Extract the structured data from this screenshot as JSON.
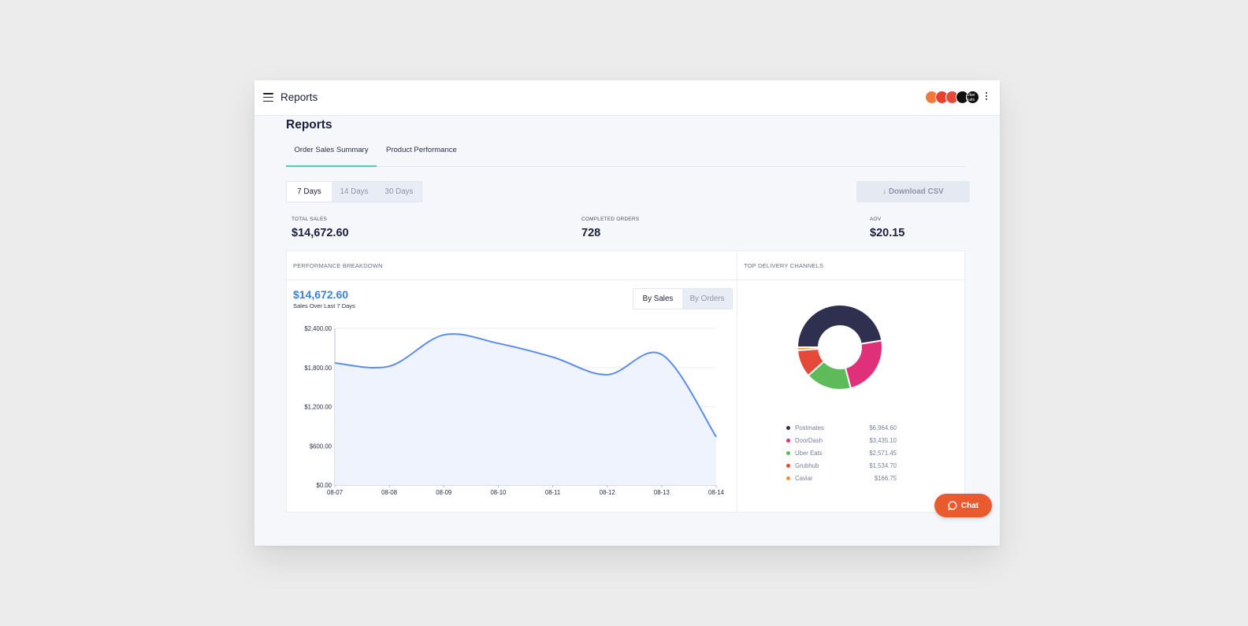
{
  "app": {
    "title": "Reports"
  },
  "header": {
    "logos": [
      {
        "name": "caviar-logo",
        "color": "#f07a3a"
      },
      {
        "name": "doordash-logo",
        "color": "#e8402a"
      },
      {
        "name": "grubhub-logo",
        "color": "#e54a3a"
      },
      {
        "name": "postmates-logo",
        "color": "#111111"
      },
      {
        "name": "uber-eats-logo",
        "color": "#0f0f0f",
        "text": "Uber Eats"
      }
    ]
  },
  "page": {
    "title": "Reports",
    "tabs": [
      {
        "label": "Order Sales Summary",
        "active": true
      },
      {
        "label": "Product Performance",
        "active": false
      }
    ]
  },
  "range": {
    "options": [
      "7 Days",
      "14 Days",
      "30 Days"
    ],
    "selected": "7 Days"
  },
  "download_label": "↓ Download CSV",
  "kpis": {
    "total_sales": {
      "label": "TOTAL SALES",
      "value": "$14,672.60"
    },
    "completed_orders": {
      "label": "COMPLETED ORDERS",
      "value": "728"
    },
    "aov": {
      "label": "AOV",
      "value": "$20.15"
    }
  },
  "performance": {
    "title": "PERFORMANCE BREAKDOWN",
    "total": "$14,672.60",
    "subtitle": "Sales Over Last 7 Days",
    "toggle": [
      "By Sales",
      "By Orders"
    ],
    "toggle_selected": "By Sales"
  },
  "channels": {
    "title": "TOP DELIVERY CHANNELS"
  },
  "chat_label": "Chat",
  "colors": {
    "line": "#5b8def",
    "area": "#eef3fd",
    "postmates": "#2f3050",
    "doordash": "#e0307a",
    "uber_eats": "#5dbb5a",
    "grubhub": "#e4493a",
    "caviar": "#f0913a"
  },
  "chart_data": [
    {
      "type": "area",
      "x": [
        "08-07",
        "08-08",
        "08-09",
        "08-10",
        "08-11",
        "08-12",
        "08-13",
        "08-14"
      ],
      "series": [
        {
          "values": [
            1870,
            1820,
            2300,
            2170,
            1960,
            1690,
            2000,
            740
          ]
        }
      ],
      "ylim": [
        0,
        2400
      ],
      "yticks": [
        0,
        600,
        1200,
        1800,
        2400
      ],
      "ytick_labels": [
        "$0.00",
        "$600.00",
        "$1,200.00",
        "$1,800.00",
        "$2,400.00"
      ],
      "grid": true
    },
    {
      "type": "pie",
      "donut": true,
      "labels": [
        "Postmates",
        "DoorDash",
        "Uber Eats",
        "Grubhub",
        "Caviar"
      ],
      "values": [
        6964.6,
        3435.1,
        2571.45,
        1534.7,
        166.75
      ],
      "value_labels": [
        "$6,964.60",
        "$3,435.10",
        "$2,571.45",
        "$1,534.70",
        "$166.75"
      ],
      "colors": [
        "#2f3050",
        "#e0307a",
        "#5dbb5a",
        "#e4493a",
        "#f0913a"
      ]
    }
  ]
}
